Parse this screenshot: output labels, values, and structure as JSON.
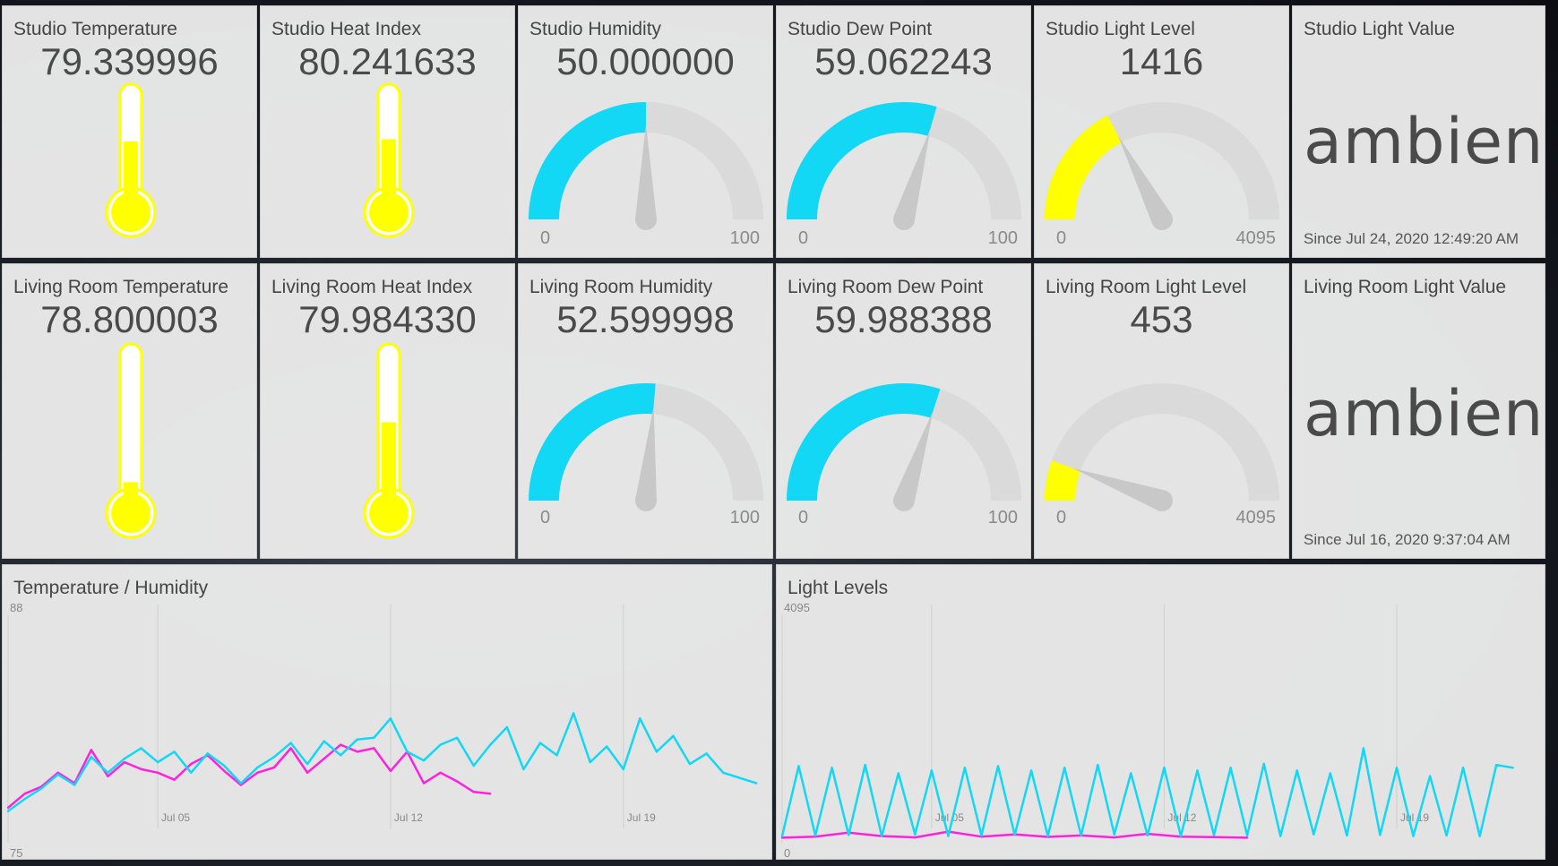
{
  "tiles": {
    "studio_temperature": {
      "title": "Studio Temperature",
      "value": "79.339996",
      "level": 0.53
    },
    "studio_heat_index": {
      "title": "Studio Heat Index",
      "value": "80.241633",
      "level": 0.55
    },
    "studio_humidity": {
      "title": "Studio Humidity",
      "value": "50.000000",
      "min": "0",
      "max": "100",
      "fraction": 0.5
    },
    "studio_dew_point": {
      "title": "Studio Dew Point",
      "value": "59.062243",
      "min": "0",
      "max": "100",
      "fraction": 0.59
    },
    "studio_light_level": {
      "title": "Studio Light Level",
      "value": "1416",
      "min": "0",
      "max": "4095",
      "fraction": 0.346
    },
    "studio_light_value": {
      "title": "Studio Light Value",
      "value": "ambient",
      "since": "Since Jul 24, 2020 12:49:20 AM"
    },
    "living_temperature": {
      "title": "Living Room Temperature",
      "value": "78.800003",
      "level": 0.14
    },
    "living_heat_index": {
      "title": "Living Room Heat Index",
      "value": "79.984330",
      "level": 0.52
    },
    "living_humidity": {
      "title": "Living Room Humidity",
      "value": "52.599998",
      "min": "0",
      "max": "100",
      "fraction": 0.526
    },
    "living_dew_point": {
      "title": "Living Room Dew Point",
      "value": "59.988388",
      "min": "0",
      "max": "100",
      "fraction": 0.6
    },
    "living_light_level": {
      "title": "Living Room Light Level",
      "value": "453",
      "min": "0",
      "max": "4095",
      "fraction": 0.111
    },
    "living_light_value": {
      "title": "Living Room Light Value",
      "value": "ambient",
      "since": "Since Jul 16, 2020 9:37:04 AM"
    }
  },
  "colors": {
    "cyan": "#12d7f5",
    "yellow": "#ffff00",
    "magenta": "#ff22dd",
    "track": "#dadada",
    "needle": "#c8c8c8"
  },
  "chart_data": [
    {
      "type": "line",
      "title": "Temperature / Humidity",
      "ylim": [
        75,
        88
      ],
      "y_tick_labels": [
        "88",
        "75"
      ],
      "x_tick_labels": [
        "Jul 05",
        "Jul 12",
        "Jul 19"
      ],
      "series": [
        {
          "color": "#ff22dd",
          "x": [
            0,
            0.5,
            1,
            1.5,
            2,
            2.5,
            3,
            3.5,
            4,
            4.5,
            5,
            5.5,
            6,
            6.5,
            7,
            7.5,
            8,
            8.5,
            9,
            9.5,
            10,
            10.5,
            11,
            11.5,
            12,
            12.5,
            13,
            13.5,
            14,
            14.5
          ],
          "values": [
            77.0,
            77.8,
            78.2,
            79.0,
            78.4,
            80.3,
            78.8,
            79.6,
            79.2,
            79.0,
            78.6,
            79.5,
            80.0,
            79.1,
            78.3,
            79.0,
            79.3,
            80.4,
            79.0,
            79.8,
            80.6,
            80.2,
            80.4,
            79.1,
            80.2,
            78.4,
            79.0,
            78.5,
            77.9,
            77.8
          ]
        },
        {
          "color": "#12d7f5",
          "x": [
            0,
            0.5,
            1,
            1.5,
            2,
            2.5,
            3,
            3.5,
            4,
            4.5,
            5,
            5.5,
            6,
            6.5,
            7,
            7.5,
            8,
            8.5,
            9,
            9.5,
            10,
            10.5,
            11,
            11.5,
            12,
            12.5,
            13,
            13.5,
            14,
            14.5,
            15,
            15.5,
            16,
            16.5,
            17,
            17.5,
            18,
            18.5,
            19,
            19.5,
            20,
            20.5,
            21,
            21.5,
            22,
            22.5
          ],
          "values": [
            76.8,
            77.5,
            78.1,
            78.9,
            78.3,
            79.9,
            79.0,
            79.8,
            80.4,
            79.6,
            80.2,
            79.0,
            80.1,
            79.4,
            78.4,
            79.3,
            79.9,
            80.7,
            79.5,
            80.8,
            80.0,
            80.9,
            81.0,
            82.1,
            80.2,
            79.7,
            80.6,
            81.0,
            79.4,
            80.6,
            81.6,
            79.2,
            80.7,
            80.0,
            82.4,
            79.6,
            80.5,
            79.2,
            82.1,
            80.2,
            81.1,
            79.5,
            80.1,
            79.0,
            78.7,
            78.4
          ]
        }
      ]
    },
    {
      "type": "line",
      "title": "Light Levels",
      "ylim": [
        0,
        4095
      ],
      "y_tick_labels": [
        "4095",
        "0"
      ],
      "x_tick_labels": [
        "Jul 05",
        "Jul 12",
        "Jul 19"
      ],
      "series": [
        {
          "color": "#ff22dd",
          "x": [
            0,
            1,
            2,
            3,
            4,
            5,
            6,
            7,
            8,
            9,
            10,
            11,
            12,
            13,
            14
          ],
          "values": [
            90,
            110,
            180,
            120,
            95,
            200,
            110,
            150,
            105,
            130,
            95,
            160,
            110,
            100,
            90
          ]
        },
        {
          "color": "#12d7f5",
          "x": [
            0,
            0.5,
            1,
            1.5,
            2,
            2.5,
            3,
            3.5,
            4,
            4.5,
            5,
            5.5,
            6,
            6.5,
            7,
            7.5,
            8,
            8.5,
            9,
            9.5,
            10,
            10.5,
            11,
            11.5,
            12,
            12.5,
            13,
            13.5,
            14,
            14.5,
            15,
            15.5,
            16,
            16.5,
            17,
            17.5,
            18,
            18.5,
            19,
            19.5,
            20,
            20.5,
            21,
            21.5,
            22
          ],
          "values": [
            120,
            1380,
            130,
            1350,
            140,
            1400,
            120,
            1250,
            150,
            1300,
            120,
            1350,
            130,
            1380,
            140,
            1300,
            120,
            1350,
            130,
            1400,
            150,
            1250,
            130,
            1350,
            120,
            1300,
            140,
            1350,
            130,
            1420,
            120,
            1300,
            150,
            1250,
            130,
            1700,
            140,
            1350,
            120,
            1200,
            130,
            1350,
            120,
            1400,
            1350
          ]
        }
      ]
    }
  ]
}
